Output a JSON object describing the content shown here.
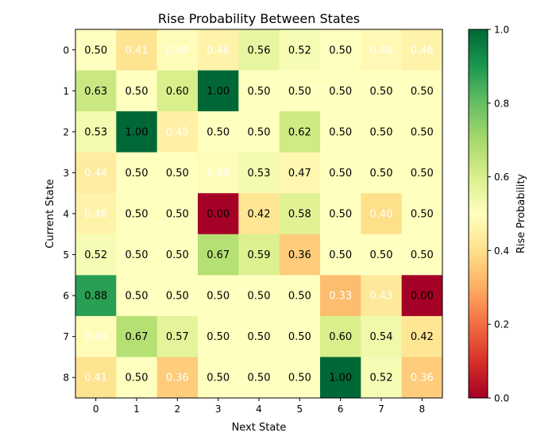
{
  "chart_data": {
    "type": "heatmap",
    "title": "Rise Probability Between States",
    "xlabel": "Next State",
    "ylabel": "Current State",
    "colorbar_label": "Rise Probability",
    "colormap": "RdYlGn",
    "x_categories": [
      "0",
      "1",
      "2",
      "3",
      "4",
      "5",
      "6",
      "7",
      "8"
    ],
    "y_categories": [
      "0",
      "1",
      "2",
      "3",
      "4",
      "5",
      "6",
      "7",
      "8"
    ],
    "vmin": 0.0,
    "vmax": 1.0,
    "colorbar_ticks": [
      "0.0",
      "0.2",
      "0.4",
      "0.6",
      "0.8",
      "1.0"
    ],
    "values": [
      [
        0.5,
        0.41,
        0.49,
        0.46,
        0.56,
        0.52,
        0.5,
        0.48,
        0.46
      ],
      [
        0.63,
        0.5,
        0.6,
        1.0,
        0.5,
        0.5,
        0.5,
        0.5,
        0.5
      ],
      [
        0.53,
        1.0,
        0.45,
        0.5,
        0.5,
        0.62,
        0.5,
        0.5,
        0.5
      ],
      [
        0.44,
        0.5,
        0.5,
        0.49,
        0.53,
        0.47,
        0.5,
        0.5,
        0.5
      ],
      [
        0.46,
        0.5,
        0.5,
        0.0,
        0.42,
        0.58,
        0.5,
        0.4,
        0.5
      ],
      [
        0.52,
        0.5,
        0.5,
        0.67,
        0.59,
        0.36,
        0.5,
        0.5,
        0.5
      ],
      [
        0.88,
        0.5,
        0.5,
        0.5,
        0.5,
        0.5,
        0.33,
        0.43,
        0.0
      ],
      [
        0.49,
        0.67,
        0.57,
        0.5,
        0.5,
        0.5,
        0.6,
        0.54,
        0.42
      ],
      [
        0.41,
        0.5,
        0.36,
        0.5,
        0.5,
        0.5,
        1.0,
        0.52,
        0.36
      ]
    ],
    "white_label_cells": [
      [
        0,
        1
      ],
      [
        0,
        2
      ],
      [
        0,
        3
      ],
      [
        0,
        7
      ],
      [
        0,
        8
      ],
      [
        2,
        2
      ],
      [
        3,
        0
      ],
      [
        3,
        3
      ],
      [
        4,
        0
      ],
      [
        4,
        7
      ],
      [
        6,
        6
      ],
      [
        6,
        7
      ],
      [
        7,
        0
      ],
      [
        8,
        0
      ],
      [
        8,
        2
      ],
      [
        8,
        8
      ]
    ]
  }
}
